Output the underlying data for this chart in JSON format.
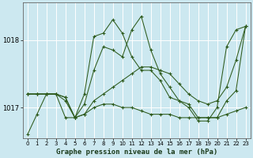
{
  "title": "Graphe pression niveau de la mer (hPa)",
  "bg_color": "#cce8f0",
  "grid_color": "#ffffff",
  "line_color": "#2d5a1b",
  "series": [
    [
      1016.6,
      1016.9,
      1017.2,
      1017.2,
      1017.1,
      1016.85,
      1017.05,
      1017.55,
      1017.9,
      1017.85,
      1017.75,
      1018.15,
      1018.35,
      1017.85,
      1017.5,
      1017.3,
      1017.1,
      1017.0,
      1016.8,
      1016.8,
      1017.0,
      1017.9,
      1018.15,
      1018.2
    ],
    [
      1017.2,
      1017.2,
      1017.2,
      1017.2,
      1017.15,
      1016.85,
      1017.2,
      1018.05,
      1018.1,
      1018.3,
      1018.1,
      1017.75,
      1017.55,
      1017.55,
      1017.4,
      1017.15,
      1017.1,
      1017.05,
      1016.85,
      1016.85,
      1016.85,
      1017.1,
      1017.25,
      1018.2
    ],
    [
      1017.2,
      1017.2,
      1017.2,
      1017.2,
      1017.15,
      1016.85,
      1016.9,
      1017.1,
      1017.2,
      1017.3,
      1017.4,
      1017.5,
      1017.6,
      1017.6,
      1017.55,
      1017.5,
      1017.35,
      1017.2,
      1017.1,
      1017.05,
      1017.1,
      1017.3,
      1017.7,
      1018.2
    ],
    [
      1017.2,
      1017.2,
      1017.2,
      1017.2,
      1016.85,
      1016.85,
      1016.9,
      1017.0,
      1017.05,
      1017.05,
      1017.0,
      1017.0,
      1016.95,
      1016.9,
      1016.9,
      1016.9,
      1016.85,
      1016.85,
      1016.85,
      1016.85,
      1016.85,
      1016.9,
      1016.95,
      1017.0
    ]
  ],
  "xlim": [
    -0.5,
    23.5
  ],
  "ylim": [
    1016.55,
    1018.55
  ],
  "yticks": [
    1017,
    1018
  ],
  "xticks": [
    0,
    1,
    2,
    3,
    4,
    5,
    6,
    7,
    8,
    9,
    10,
    11,
    12,
    13,
    14,
    15,
    16,
    17,
    18,
    19,
    20,
    21,
    22,
    23
  ],
  "xtick_fontsize": 5.0,
  "ytick_fontsize": 6.0,
  "title_fontsize": 6.5
}
